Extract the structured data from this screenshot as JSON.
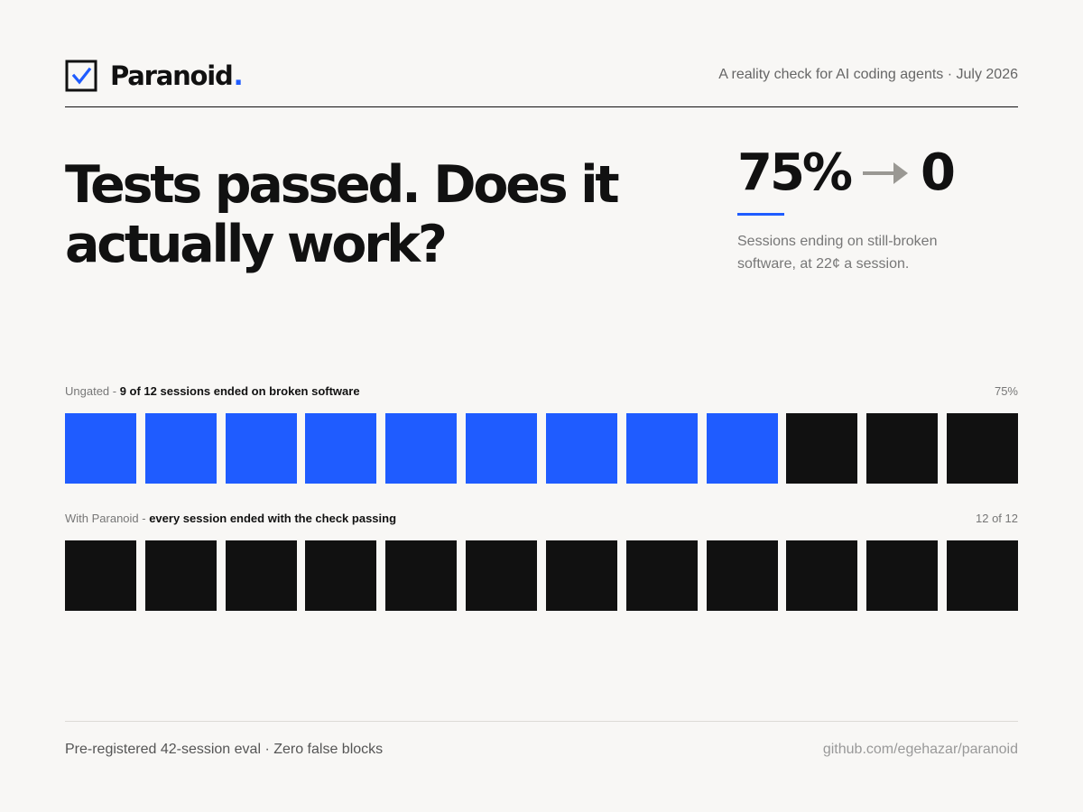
{
  "brand": {
    "name": "Paranoid",
    "dot": ".",
    "logo_icon": "checkbox-checked-icon",
    "accent_color": "#1f5cff"
  },
  "header": {
    "tagline": "A reality check for AI coding agents · July 2026"
  },
  "hero": {
    "title": "Tests passed. Does it actually work?"
  },
  "stat": {
    "before": "75%",
    "arrow_icon": "arrow-right-icon",
    "after": "0",
    "caption": "Sessions ending on still-broken software, at 22¢ a session."
  },
  "rows": [
    {
      "id": "ungated",
      "label_prefix": "Ungated - ",
      "label_bold": "9 of 12 sessions ended on broken software",
      "value": "75%",
      "total_sessions": 12,
      "broken_sessions": 9,
      "broken_color": "#1f5cff",
      "ok_color": "#111111"
    },
    {
      "id": "paranoid",
      "label_prefix": "With Paranoid - ",
      "label_bold": "every session ended with the check passing",
      "value": "12 of 12",
      "total_sessions": 12,
      "broken_sessions": 0,
      "broken_color": "#1f5cff",
      "ok_color": "#111111"
    }
  ],
  "footer": {
    "left": "Pre-registered 42-session eval · Zero false blocks",
    "right": "github.com/egehazar/paranoid"
  }
}
